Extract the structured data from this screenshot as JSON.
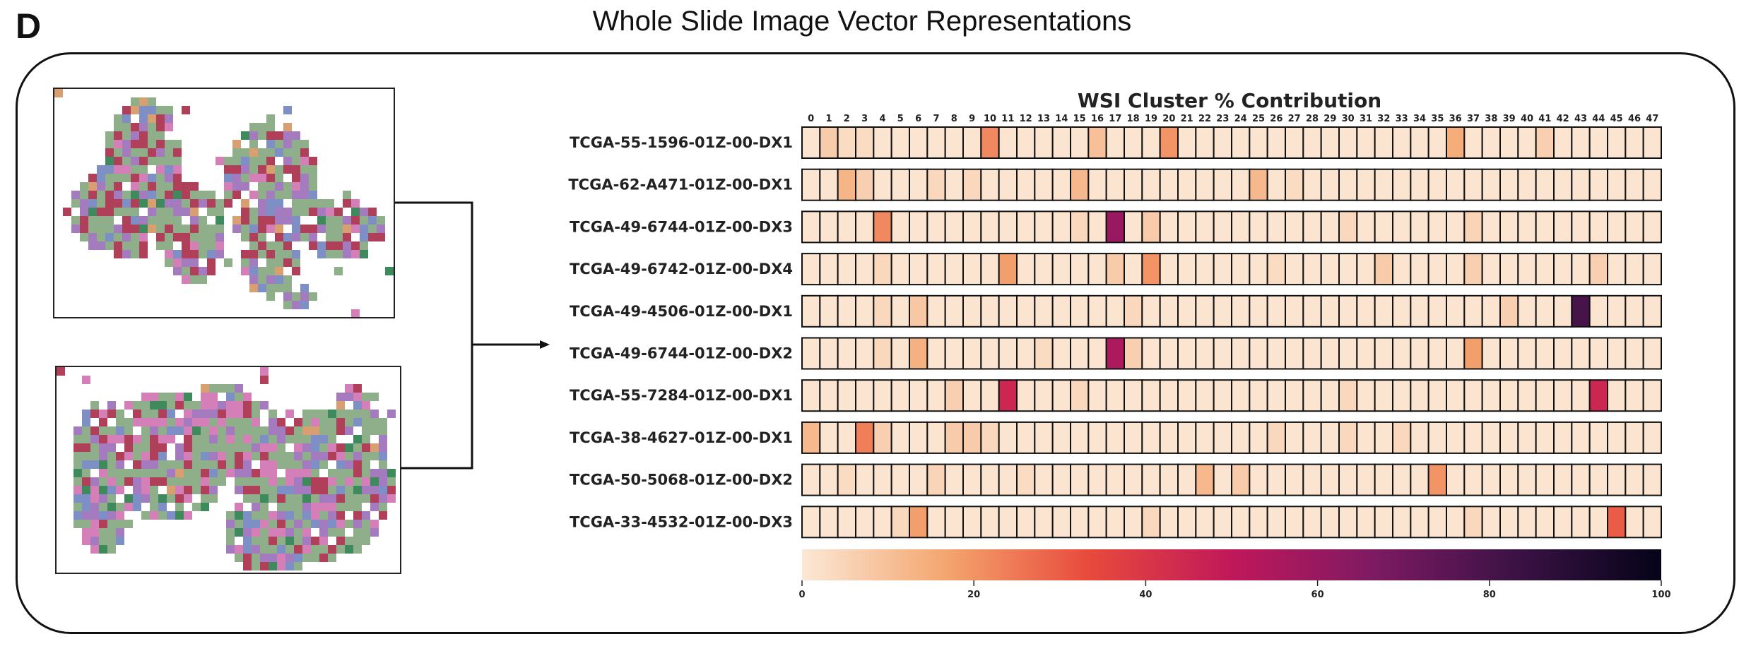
{
  "header": {
    "panel_letter": "D",
    "title": "Whole Slide Image Vector Representations"
  },
  "slides": [
    {
      "name": "Tissue slide thumbnail 1"
    },
    {
      "name": "Tissue slide thumbnail 2"
    }
  ],
  "colors": {
    "tissue_green": "#8fae8a",
    "tissue_red": "#b0405a",
    "tissue_purple": "#a47bbf",
    "tissue_pink": "#d47fb8",
    "tissue_blue": "#7d8fc4",
    "tissue_orange": "#d8a070",
    "tissue_darkgreen": "#3f8a5c"
  },
  "chart_data": {
    "type": "heatmap",
    "title": "WSI Cluster % Contribution",
    "columns": [
      "0",
      "1",
      "2",
      "3",
      "4",
      "5",
      "6",
      "7",
      "8",
      "9",
      "10",
      "11",
      "12",
      "13",
      "14",
      "15",
      "16",
      "17",
      "18",
      "19",
      "20",
      "21",
      "22",
      "23",
      "24",
      "25",
      "26",
      "27",
      "28",
      "29",
      "30",
      "31",
      "32",
      "33",
      "34",
      "35",
      "36",
      "37",
      "38",
      "39",
      "40",
      "41",
      "42",
      "43",
      "44",
      "45",
      "46",
      "47"
    ],
    "rows": [
      "TCGA-55-1596-01Z-00-DX1",
      "TCGA-62-A471-01Z-00-DX1",
      "TCGA-49-6744-01Z-00-DX3",
      "TCGA-49-6742-01Z-00-DX4",
      "TCGA-49-4506-01Z-00-DX1",
      "TCGA-49-6744-01Z-00-DX2",
      "TCGA-55-7284-01Z-00-DX1",
      "TCGA-38-4627-01Z-00-DX1",
      "TCGA-50-5068-01Z-00-DX2",
      "TCGA-33-4532-01Z-00-DX3"
    ],
    "values": [
      [
        1,
        7,
        3,
        3,
        1,
        1,
        1,
        1,
        1,
        1,
        22,
        1,
        1,
        1,
        1,
        1,
        10,
        1,
        1,
        1,
        20,
        1,
        1,
        1,
        1,
        1,
        1,
        1,
        1,
        1,
        1,
        1,
        1,
        1,
        1,
        1,
        15,
        1,
        1,
        1,
        1,
        6,
        1,
        1,
        1,
        1,
        1,
        1
      ],
      [
        1,
        1,
        13,
        6,
        1,
        1,
        1,
        4,
        1,
        4,
        1,
        1,
        1,
        1,
        1,
        12,
        1,
        1,
        1,
        1,
        1,
        1,
        1,
        1,
        1,
        12,
        1,
        3,
        1,
        1,
        1,
        1,
        1,
        1,
        1,
        1,
        1,
        1,
        1,
        1,
        1,
        1,
        1,
        1,
        1,
        1,
        1,
        1
      ],
      [
        1,
        1,
        1,
        1,
        22,
        1,
        1,
        1,
        1,
        1,
        1,
        1,
        1,
        1,
        1,
        4,
        1,
        60,
        1,
        7,
        1,
        1,
        1,
        1,
        1,
        1,
        1,
        1,
        1,
        1,
        4,
        1,
        1,
        1,
        1,
        1,
        1,
        5,
        1,
        1,
        1,
        1,
        1,
        1,
        1,
        1,
        1,
        1
      ],
      [
        1,
        1,
        1,
        1,
        4,
        1,
        1,
        1,
        1,
        1,
        1,
        18,
        1,
        1,
        1,
        1,
        1,
        7,
        1,
        20,
        1,
        1,
        1,
        1,
        1,
        1,
        3,
        1,
        1,
        1,
        1,
        1,
        7,
        1,
        1,
        1,
        1,
        6,
        1,
        1,
        1,
        1,
        1,
        1,
        6,
        1,
        1,
        1
      ],
      [
        1,
        1,
        1,
        1,
        4,
        1,
        8,
        1,
        1,
        1,
        1,
        1,
        1,
        1,
        1,
        1,
        1,
        1,
        4,
        1,
        1,
        1,
        1,
        1,
        1,
        1,
        1,
        1,
        1,
        1,
        1,
        1,
        1,
        1,
        1,
        1,
        1,
        1,
        1,
        6,
        1,
        1,
        1,
        80,
        1,
        1,
        1,
        1
      ],
      [
        1,
        1,
        1,
        1,
        4,
        1,
        14,
        1,
        1,
        1,
        1,
        1,
        1,
        3,
        1,
        1,
        1,
        55,
        6,
        1,
        1,
        1,
        1,
        1,
        1,
        1,
        1,
        1,
        1,
        1,
        1,
        1,
        1,
        1,
        1,
        1,
        1,
        18,
        1,
        1,
        1,
        1,
        1,
        1,
        1,
        1,
        1,
        1
      ],
      [
        1,
        1,
        1,
        1,
        1,
        1,
        1,
        1,
        6,
        1,
        1,
        45,
        1,
        1,
        1,
        4,
        1,
        1,
        1,
        1,
        1,
        1,
        1,
        1,
        1,
        1,
        1,
        1,
        1,
        1,
        4,
        1,
        1,
        1,
        1,
        1,
        1,
        1,
        1,
        1,
        1,
        1,
        1,
        1,
        45,
        1,
        1,
        1
      ],
      [
        12,
        1,
        1,
        24,
        6,
        1,
        1,
        1,
        7,
        7,
        4,
        1,
        1,
        1,
        1,
        1,
        1,
        1,
        1,
        1,
        1,
        1,
        1,
        1,
        1,
        1,
        4,
        1,
        1,
        1,
        4,
        1,
        1,
        4,
        1,
        1,
        1,
        1,
        1,
        1,
        1,
        1,
        1,
        1,
        1,
        1,
        1,
        1
      ],
      [
        1,
        1,
        3,
        1,
        1,
        1,
        1,
        5,
        1,
        1,
        1,
        1,
        3,
        1,
        1,
        1,
        1,
        1,
        1,
        1,
        1,
        1,
        12,
        1,
        7,
        1,
        1,
        1,
        1,
        1,
        1,
        1,
        1,
        1,
        1,
        20,
        1,
        1,
        1,
        1,
        1,
        1,
        1,
        1,
        1,
        1,
        1,
        1
      ],
      [
        1,
        1,
        1,
        1,
        1,
        4,
        18,
        1,
        1,
        1,
        1,
        1,
        1,
        1,
        1,
        1,
        1,
        1,
        1,
        4,
        1,
        1,
        1,
        1,
        1,
        1,
        1,
        1,
        1,
        1,
        1,
        1,
        1,
        1,
        1,
        1,
        1,
        4,
        1,
        1,
        1,
        1,
        1,
        1,
        1,
        30,
        1,
        1
      ]
    ],
    "colorbar": {
      "min": 0,
      "max": 100,
      "ticks": [
        "0",
        "20",
        "40",
        "60",
        "80",
        "100"
      ],
      "colors": [
        "#fbe8d6",
        "#f4a66f",
        "#e84a3c",
        "#c0185a",
        "#7d1a62",
        "#3a1244",
        "#050318"
      ]
    }
  }
}
